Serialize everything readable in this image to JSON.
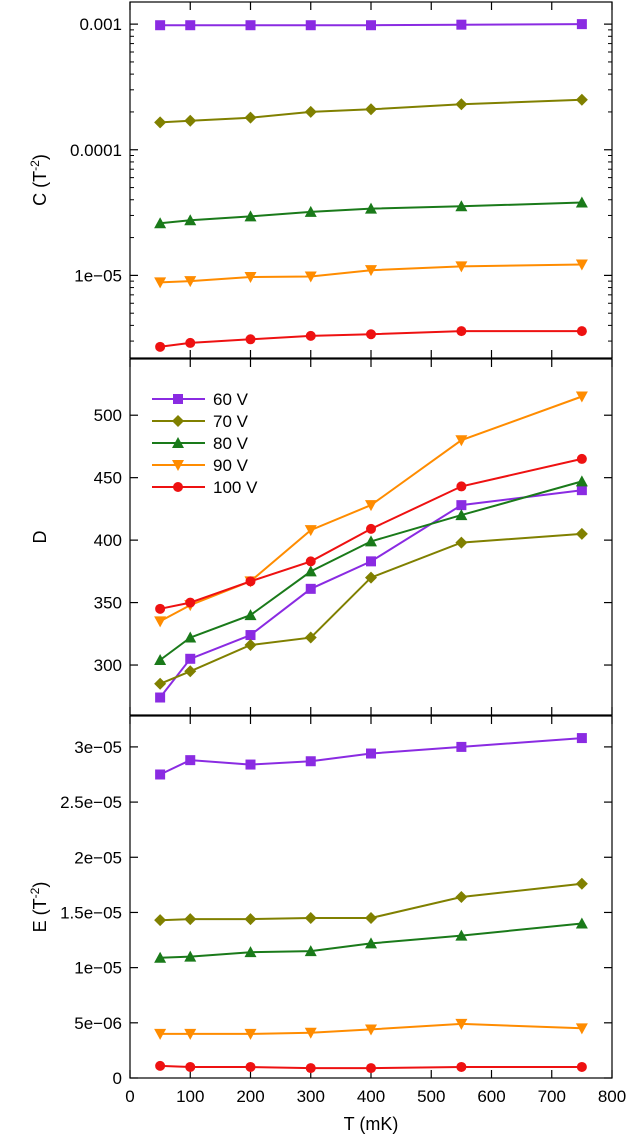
{
  "chart_data": [
    {
      "type": "line",
      "ylabel": "C (T",
      "ylabel_sup": "-2",
      "ylabel_end": ")",
      "yscale": "log",
      "ylim": [
        2.2e-06,
        0.0015
      ],
      "yticks": [
        0.001,
        0.0001,
        1e-05
      ],
      "ytick_labels": [
        "0.001",
        "0.0001",
        "1e−05"
      ],
      "xlim": [
        0,
        800
      ],
      "x": [
        50,
        100,
        200,
        300,
        400,
        550,
        750
      ],
      "series": [
        {
          "name": "60 V",
          "color": "#8a2be2",
          "marker": "square",
          "values": [
            0.00098,
            0.00098,
            0.00098,
            0.00098,
            0.00098,
            0.00099,
            0.001
          ]
        },
        {
          "name": "70 V",
          "color": "#808000",
          "marker": "diamond",
          "values": [
            0.000165,
            0.00017,
            0.00018,
            0.0002,
            0.00021,
            0.00023,
            0.00025
          ]
        },
        {
          "name": "80 V",
          "color": "#1a7a1a",
          "marker": "triangle-up",
          "values": [
            2.6e-05,
            2.75e-05,
            2.95e-05,
            3.2e-05,
            3.4e-05,
            3.55e-05,
            3.8e-05
          ]
        },
        {
          "name": "90 V",
          "color": "#ff8c00",
          "marker": "triangle-down",
          "values": [
            8.8e-06,
            9e-06,
            9.7e-06,
            9.8e-06,
            1.1e-05,
            1.18e-05,
            1.22e-05
          ]
        },
        {
          "name": "100 V",
          "color": "#ee1111",
          "marker": "circle",
          "values": [
            2.7e-06,
            2.9e-06,
            3.1e-06,
            3.3e-06,
            3.4e-06,
            3.6e-06,
            3.6e-06
          ]
        }
      ]
    },
    {
      "type": "line",
      "ylabel": "D",
      "ylim": [
        260,
        545
      ],
      "yticks": [
        300,
        350,
        400,
        450,
        500
      ],
      "ytick_labels": [
        "300",
        "350",
        "400",
        "450",
        "500"
      ],
      "xlim": [
        0,
        800
      ],
      "x": [
        50,
        100,
        200,
        300,
        400,
        550,
        750
      ],
      "legend": {
        "position": "top-left",
        "entries": [
          "60 V",
          "70 V",
          "80 V",
          "90 V",
          "100 V"
        ]
      },
      "series": [
        {
          "name": "60 V",
          "color": "#8a2be2",
          "marker": "square",
          "values": [
            274,
            305,
            324,
            361,
            383,
            428,
            440
          ]
        },
        {
          "name": "70 V",
          "color": "#808000",
          "marker": "diamond",
          "values": [
            285,
            295,
            316,
            322,
            370,
            398,
            405
          ]
        },
        {
          "name": "80 V",
          "color": "#1a7a1a",
          "marker": "triangle-up",
          "values": [
            304,
            322,
            340,
            375,
            399,
            420,
            447
          ]
        },
        {
          "name": "90 V",
          "color": "#ff8c00",
          "marker": "triangle-down",
          "values": [
            335,
            348,
            367,
            408,
            428,
            480,
            515
          ]
        },
        {
          "name": "100 V",
          "color": "#ee1111",
          "marker": "circle",
          "values": [
            345,
            350,
            367,
            383,
            409,
            443,
            465
          ]
        }
      ]
    },
    {
      "type": "line",
      "ylabel": "E (T",
      "ylabel_sup": "-2",
      "ylabel_end": ")",
      "xlabel": "T (mK)",
      "ylim": [
        0,
        3.28e-05
      ],
      "yticks": [
        0,
        5e-06,
        1e-05,
        1.5e-05,
        2e-05,
        2.5e-05,
        3e-05
      ],
      "ytick_labels": [
        "0",
        "5e−06",
        "1e−05",
        "1.5e−05",
        "2e−05",
        "2.5e−05",
        "3e−05"
      ],
      "xlim": [
        0,
        800
      ],
      "xticks": [
        0,
        100,
        200,
        300,
        400,
        500,
        600,
        700,
        800
      ],
      "xtick_labels": [
        "0",
        "100",
        "200",
        "300",
        "400",
        "500",
        "600",
        "700",
        "800"
      ],
      "x": [
        50,
        100,
        200,
        300,
        400,
        550,
        750
      ],
      "series": [
        {
          "name": "60 V",
          "color": "#8a2be2",
          "marker": "square",
          "values": [
            2.75e-05,
            2.88e-05,
            2.84e-05,
            2.87e-05,
            2.94e-05,
            3e-05,
            3.08e-05
          ]
        },
        {
          "name": "70 V",
          "color": "#808000",
          "marker": "diamond",
          "values": [
            1.43e-05,
            1.44e-05,
            1.44e-05,
            1.45e-05,
            1.45e-05,
            1.64e-05,
            1.76e-05
          ]
        },
        {
          "name": "80 V",
          "color": "#1a7a1a",
          "marker": "triangle-up",
          "values": [
            1.09e-05,
            1.1e-05,
            1.14e-05,
            1.15e-05,
            1.22e-05,
            1.29e-05,
            1.4e-05
          ]
        },
        {
          "name": "90 V",
          "color": "#ff8c00",
          "marker": "triangle-down",
          "values": [
            4e-06,
            4e-06,
            4e-06,
            4.1e-06,
            4.4e-06,
            4.9e-06,
            4.5e-06
          ]
        },
        {
          "name": "100 V",
          "color": "#ee1111",
          "marker": "circle",
          "values": [
            1.1e-06,
            1e-06,
            1e-06,
            9e-07,
            9e-07,
            1e-06,
            1e-06
          ]
        }
      ]
    }
  ]
}
